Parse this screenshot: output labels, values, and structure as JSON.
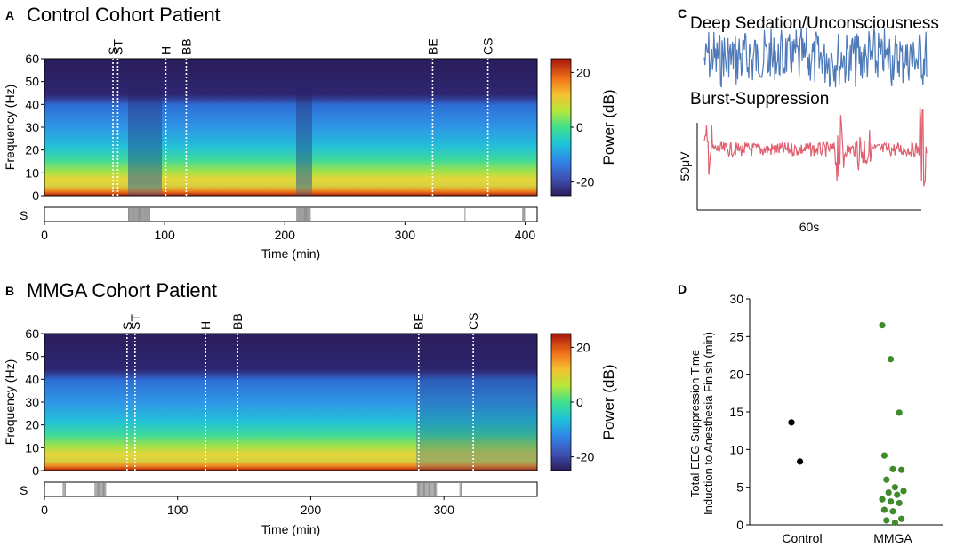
{
  "panels": {
    "A": {
      "letter": "A",
      "title": "Control Cohort Patient",
      "xlabel": "Time (min)",
      "ylabel": "Frequency (Hz)",
      "xlim": [
        0,
        410
      ],
      "ylim": [
        0,
        60
      ],
      "xticks": [
        "0",
        "100",
        "200",
        "300",
        "400"
      ],
      "yticks": [
        "0",
        "10",
        "20",
        "30",
        "40",
        "50",
        "60"
      ],
      "strip_label": "S",
      "cbar_label": "Power (dB)",
      "cbar_ticks": [
        "20",
        "0",
        "-20"
      ],
      "events": [
        {
          "label": "S",
          "t": 57
        },
        {
          "label": "ST",
          "t": 61
        },
        {
          "label": "H",
          "t": 101
        },
        {
          "label": "BB",
          "t": 118
        },
        {
          "label": "BE",
          "t": 323
        },
        {
          "label": "CS",
          "t": 369
        }
      ]
    },
    "B": {
      "letter": "B",
      "title": "MMGA Cohort Patient",
      "xlabel": "Time (min)",
      "ylabel": "Frequency (Hz)",
      "xlim": [
        0,
        370
      ],
      "ylim": [
        0,
        60
      ],
      "xticks": [
        "0",
        "100",
        "200",
        "300"
      ],
      "yticks": [
        "0",
        "10",
        "20",
        "30",
        "40",
        "50",
        "60"
      ],
      "strip_label": "S",
      "cbar_label": "Power (dB)",
      "cbar_ticks": [
        "20",
        "0",
        "-20"
      ],
      "events": [
        {
          "label": "S",
          "t": 62
        },
        {
          "label": "ST",
          "t": 68
        },
        {
          "label": "H",
          "t": 121
        },
        {
          "label": "BB",
          "t": 145
        },
        {
          "label": "BE",
          "t": 281
        },
        {
          "label": "CS",
          "t": 322
        }
      ]
    },
    "C": {
      "letter": "C",
      "trace1_label": "Deep Sedation/Unconsciousness",
      "trace2_label": "Burst-Suppression",
      "scale_y": "50μV",
      "scale_x": "60s",
      "trace1_color": "#4f7ab8",
      "trace2_color": "#e06070"
    },
    "D": {
      "letter": "D",
      "ylabel_line1": "Total EEG Suppression Time",
      "ylabel_line2": "Induction to Anesthesia Finish (min)",
      "yticks": [
        "0",
        "5",
        "10",
        "15",
        "20",
        "25",
        "30"
      ],
      "categories": [
        "Control",
        "MMGA"
      ]
    }
  },
  "chart_data": [
    {
      "type": "heatmap",
      "title": "Control Cohort Patient",
      "xlabel": "Time (min)",
      "ylabel": "Frequency (Hz)",
      "xlim": [
        0,
        410
      ],
      "ylim": [
        0,
        60
      ],
      "colorbar": {
        "label": "Power (dB)",
        "range": [
          -25,
          25
        ]
      },
      "events": {
        "S": 57,
        "ST": 61,
        "H": 101,
        "BB": 118,
        "BE": 323,
        "CS": 369
      },
      "suppression_periods_min": [
        [
          70,
          88
        ],
        [
          210,
          222
        ],
        [
          350,
          350
        ],
        [
          398,
          400
        ]
      ]
    },
    {
      "type": "heatmap",
      "title": "MMGA Cohort Patient",
      "xlabel": "Time (min)",
      "ylabel": "Frequency (Hz)",
      "xlim": [
        0,
        370
      ],
      "ylim": [
        0,
        60
      ],
      "colorbar": {
        "label": "Power (dB)",
        "range": [
          -25,
          25
        ]
      },
      "events": {
        "S": 62,
        "ST": 68,
        "H": 121,
        "BB": 145,
        "BE": 281,
        "CS": 322
      },
      "suppression_periods_min": [
        [
          14,
          16
        ],
        [
          38,
          46
        ],
        [
          280,
          295
        ],
        [
          312,
          313
        ]
      ]
    },
    {
      "type": "line",
      "series": [
        {
          "name": "Deep Sedation/Unconsciousness",
          "color": "#4f7ab8"
        },
        {
          "name": "Burst-Suppression",
          "color": "#e06070"
        }
      ],
      "scale_bar": {
        "y": "50μV",
        "x": "60s"
      }
    },
    {
      "type": "scatter",
      "ylabel": "Total EEG Suppression Time Induction to Anesthesia Finish (min)",
      "ylim": [
        0,
        30
      ],
      "categories": [
        "Control",
        "MMGA"
      ],
      "series": [
        {
          "name": "Control",
          "color": "#000000",
          "values": [
            13.6,
            8.4
          ]
        },
        {
          "name": "MMGA",
          "color": "#3f8a2a",
          "values": [
            26.5,
            22.0,
            14.9,
            9.2,
            7.4,
            7.3,
            6.0,
            5.0,
            4.5,
            4.3,
            4.0,
            3.4,
            3.1,
            2.9,
            2.0,
            1.8,
            0.8,
            0.6,
            0.3
          ]
        }
      ]
    }
  ]
}
